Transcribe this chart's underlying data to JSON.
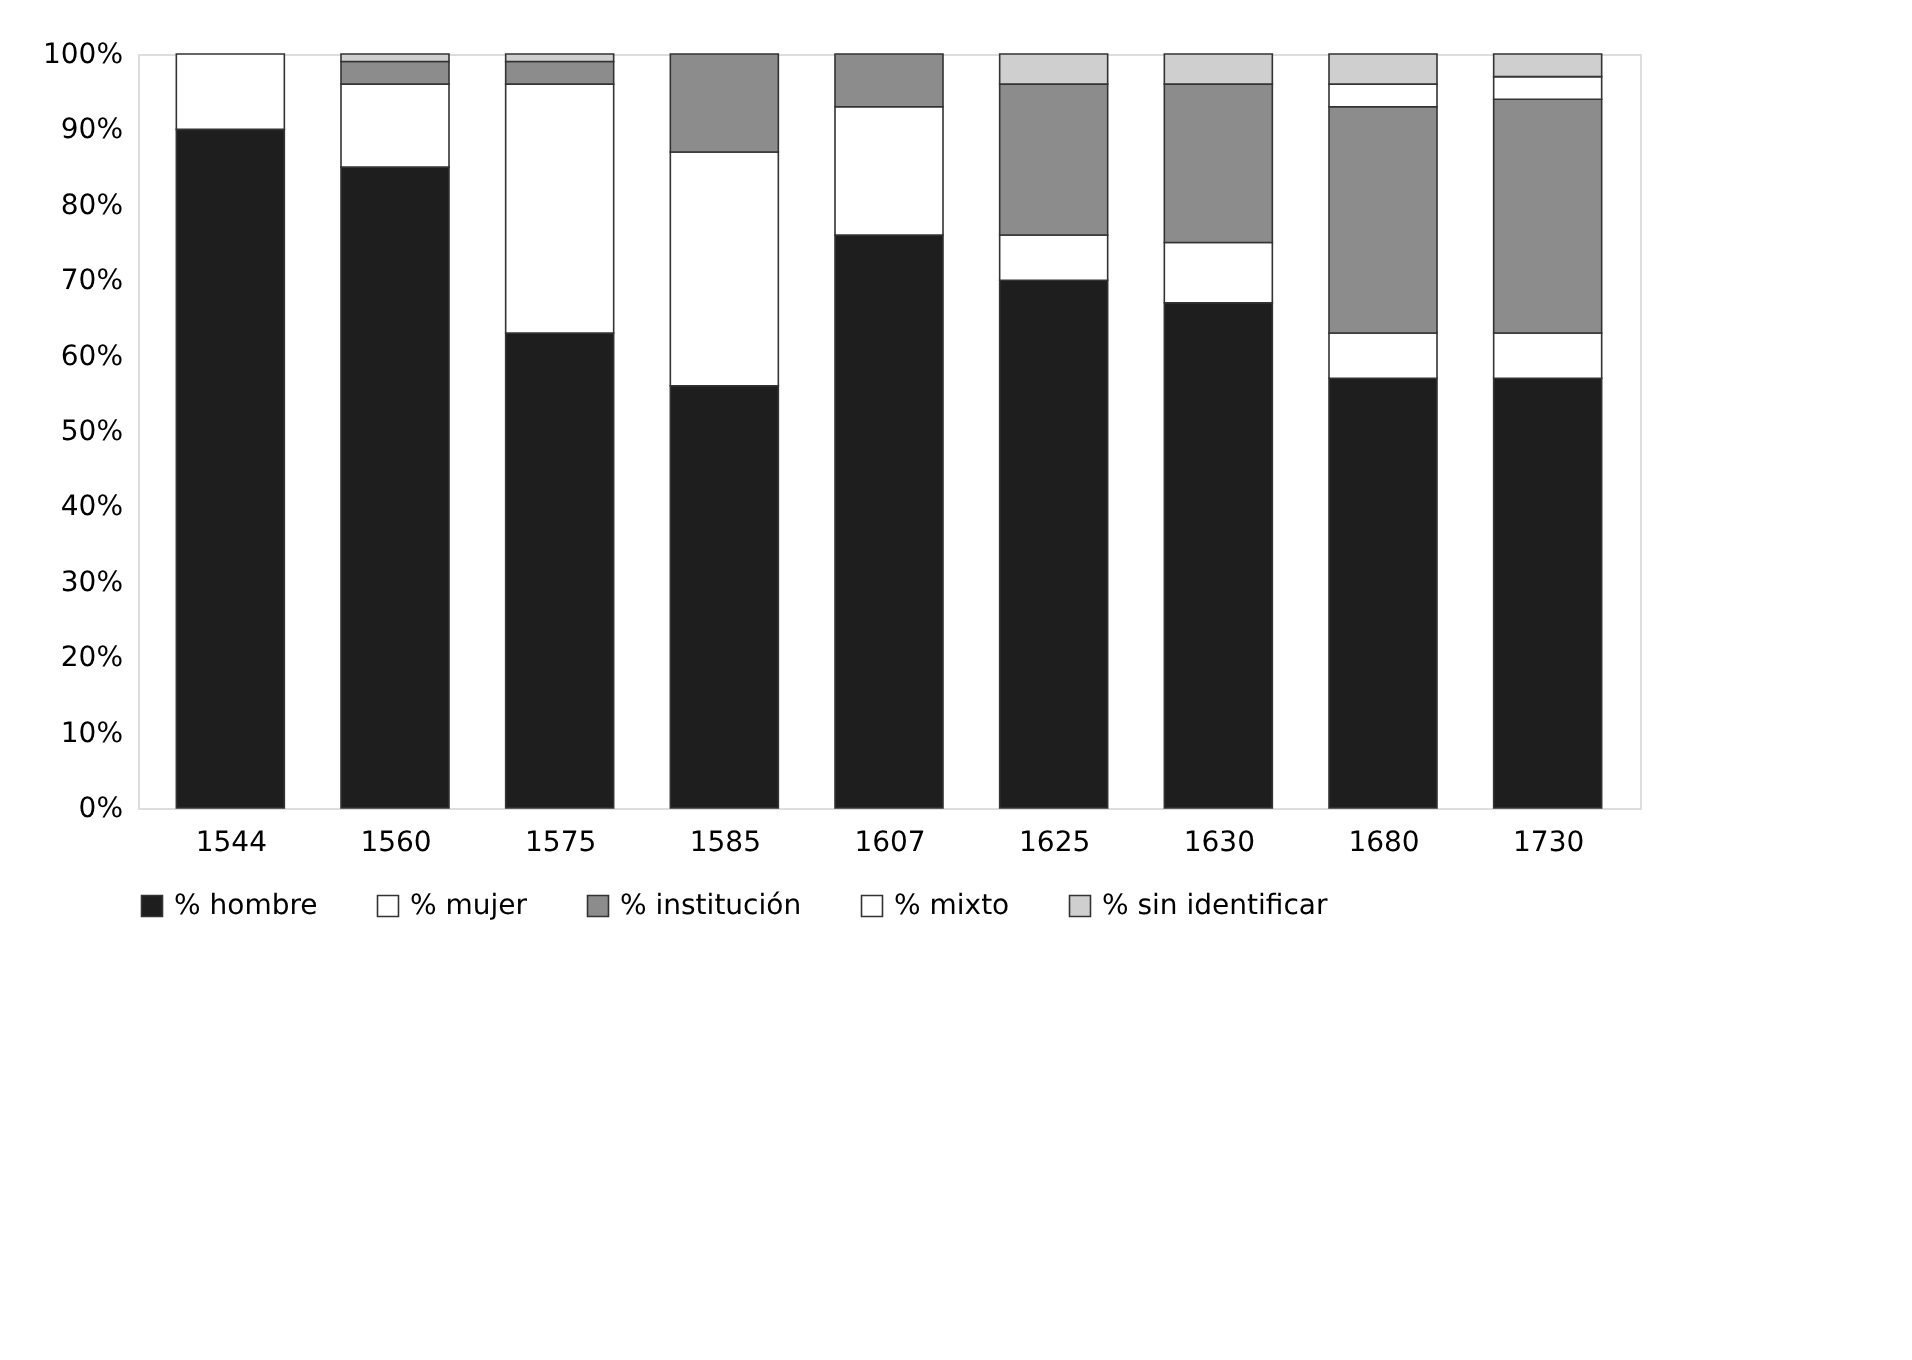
{
  "chart_data": {
    "type": "bar",
    "stacked": true,
    "categories": [
      "1544",
      "1560",
      "1575",
      "1585",
      "1607",
      "1625",
      "1630",
      "1680",
      "1730"
    ],
    "series": [
      {
        "name": "% hombre",
        "color": "#1e1e1e",
        "values": [
          90,
          85,
          63,
          56,
          76,
          70,
          67,
          57,
          57
        ]
      },
      {
        "name": "% mujer",
        "color": "#ffffff",
        "values": [
          10,
          11,
          33,
          31,
          17,
          6,
          8,
          6,
          6
        ]
      },
      {
        "name": "% institución",
        "color": "#8c8c8c",
        "values": [
          0,
          3,
          3,
          13,
          7,
          20,
          21,
          30,
          31
        ]
      },
      {
        "name": "% mixto",
        "color": "#ffffff",
        "values": [
          0,
          0,
          0,
          0,
          0,
          0,
          0,
          3,
          3
        ]
      },
      {
        "name": "% sin identificar",
        "color": "#cfcfcf",
        "values": [
          0,
          1,
          1,
          0,
          0,
          4,
          4,
          4,
          3
        ]
      }
    ],
    "ylim": [
      0,
      100
    ],
    "yticks": [
      {
        "value": 0,
        "label": "0%"
      },
      {
        "value": 10,
        "label": "10%"
      },
      {
        "value": 20,
        "label": "20%"
      },
      {
        "value": 30,
        "label": "30%"
      },
      {
        "value": 40,
        "label": "40%"
      },
      {
        "value": 50,
        "label": "50%"
      },
      {
        "value": 60,
        "label": "60%"
      },
      {
        "value": 70,
        "label": "70%"
      },
      {
        "value": 80,
        "label": "80%"
      },
      {
        "value": 90,
        "label": "90%"
      },
      {
        "value": 100,
        "label": "100%"
      }
    ],
    "grid": false,
    "legend": "bottom"
  }
}
